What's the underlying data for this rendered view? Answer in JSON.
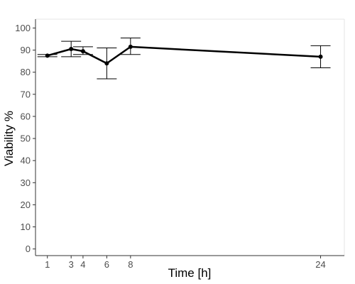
{
  "chart_data": {
    "type": "line",
    "xlabel": "Time [h]",
    "ylabel": "Viability %",
    "ylim": [
      -3,
      104
    ],
    "y_ticks": [
      0,
      10,
      20,
      30,
      40,
      50,
      60,
      70,
      80,
      90,
      100
    ],
    "x_categories": [
      "1",
      "3",
      "4",
      "6",
      "8",
      "24"
    ],
    "grid": false,
    "series": [
      {
        "values": [
          87.5,
          90.5,
          89.5,
          84,
          91.5,
          87
        ],
        "err_low": [
          87,
          87,
          88,
          77,
          88,
          82
        ],
        "err_high": [
          88,
          94,
          91.5,
          91,
          95.5,
          92
        ],
        "color": "#000000"
      }
    ]
  }
}
